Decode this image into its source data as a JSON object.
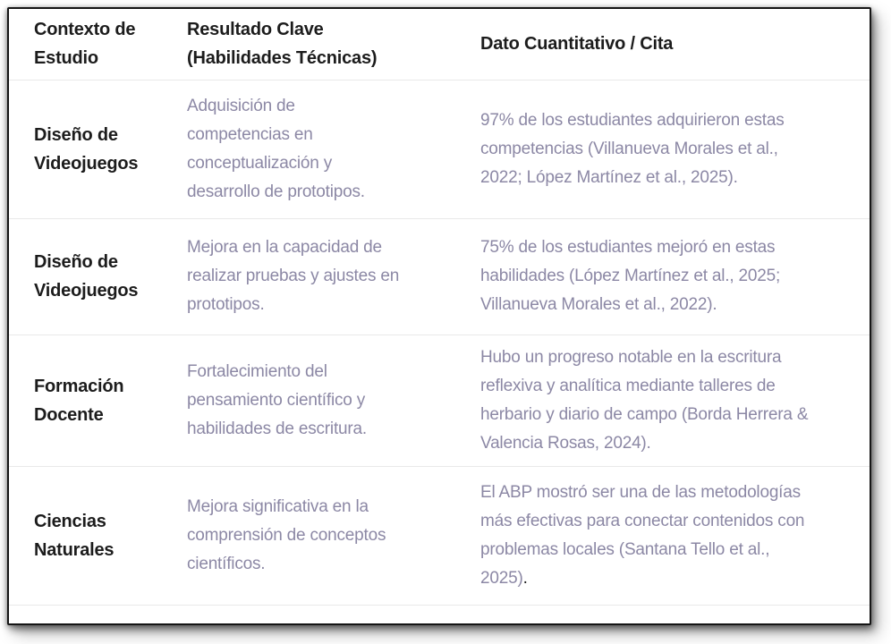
{
  "colors": {
    "text_primary": "#1c1c1c",
    "text_accent": "#8c88a5",
    "divider": "#e9e9e9",
    "frame_border": "#161616",
    "background": "#ffffff"
  },
  "table": {
    "headers": [
      "Contexto de\nEstudio",
      "Resultado Clave\n(Habilidades Técnicas)",
      "Dato Cuantitativo / Cita"
    ],
    "rows": [
      {
        "contexto": "Diseño de\nVideojuegos",
        "resultado": "Adquisición de\ncompetencias en\nconceptualización y\ndesarrollo de prototipos.",
        "dato": "97% de los estudiantes adquirieron estas\ncompetencias (Villanueva Morales et al.,\n2022; López Martínez et al., 2025).",
        "dato_suffix": ""
      },
      {
        "contexto": "Diseño de\nVideojuegos",
        "resultado": "Mejora en la capacidad de\nrealizar pruebas y ajustes en\nprototipos.",
        "dato": "75% de los estudiantes mejoró en estas\nhabilidades (López Martínez et al., 2025;\nVillanueva Morales et al., 2022).",
        "dato_suffix": ""
      },
      {
        "contexto": "Formación\nDocente",
        "resultado": "Fortalecimiento del\npensamiento científico y\nhabilidades de escritura.",
        "dato": "Hubo un progreso notable en la escritura\nreflexiva y analítica mediante talleres de\nherbario y diario de campo (Borda Herrera &\nValencia Rosas, 2024).",
        "dato_suffix": ""
      },
      {
        "contexto": "Ciencias\nNaturales",
        "resultado": "Mejora significativa en la\ncomprensión de conceptos\ncientíficos.",
        "dato": "El ABP mostró ser una de las metodologías\nmás efectivas para conectar contenidos con\nproblemas locales (Santana Tello et al.,\n2025)",
        "dato_suffix": "."
      }
    ]
  }
}
